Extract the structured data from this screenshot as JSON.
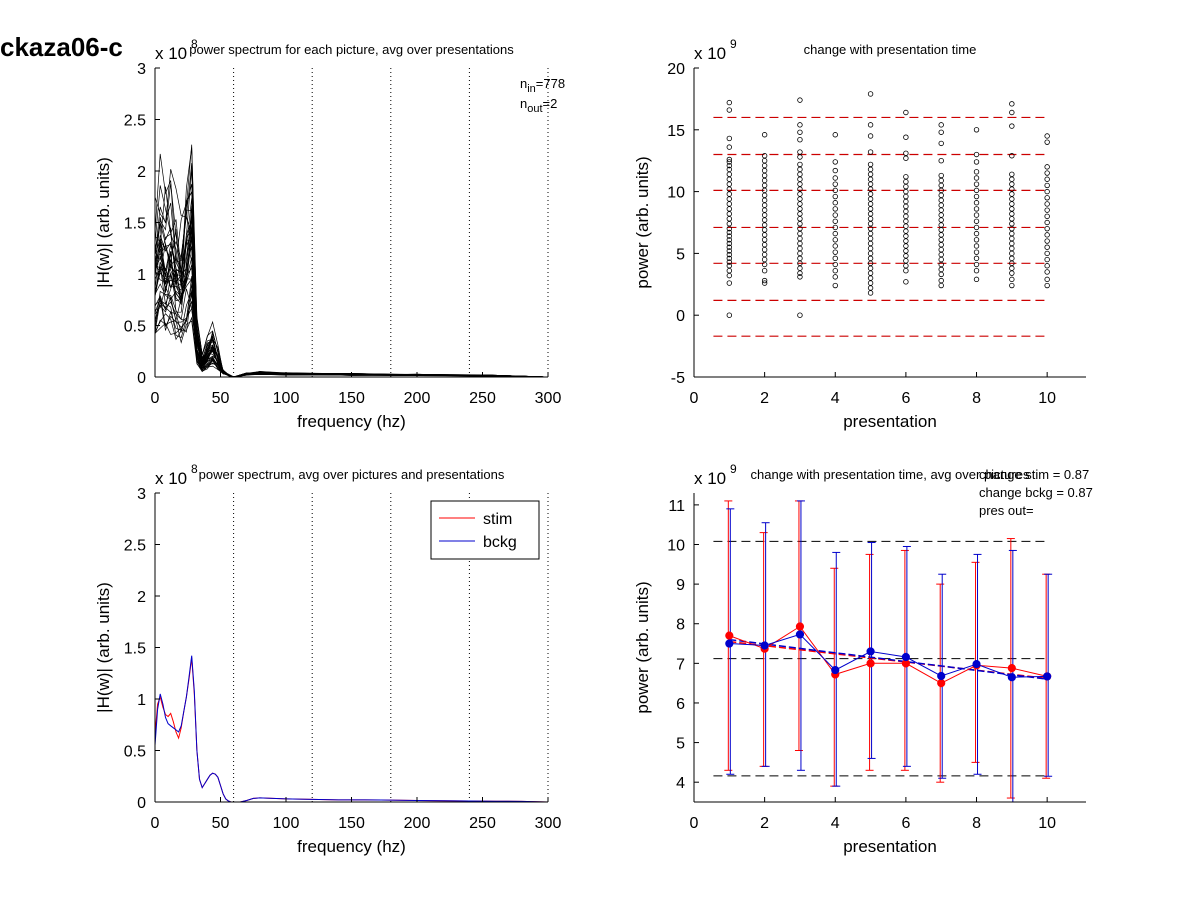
{
  "figure_title": "ckaza06-c",
  "chart_data": [
    {
      "id": "p1",
      "type": "line",
      "title": "power spectrum for each picture, avg over presentations",
      "xlabel": "frequency (hz)",
      "ylabel": "|H(w)| (arb. units)",
      "exponent": "x 10",
      "exponent_power": "8",
      "xlim": [
        0,
        300
      ],
      "ylim": [
        0,
        3
      ],
      "xticks": [
        "0",
        "50",
        "100",
        "150",
        "200",
        "250",
        "300"
      ],
      "yticks": [
        "0",
        "0.5",
        "1",
        "1.5",
        "2",
        "2.5",
        "3"
      ],
      "vlines": [
        60,
        120,
        180,
        240,
        300
      ],
      "annotations": [
        {
          "base": "n",
          "sub": "in",
          "value": "=778"
        },
        {
          "base": "n",
          "sub": "out",
          "value": "=2"
        }
      ],
      "base_curve": {
        "x": [
          0,
          4,
          8,
          12,
          16,
          20,
          24,
          28,
          32,
          36,
          40,
          44,
          48,
          52,
          56,
          60,
          70,
          80,
          100,
          150,
          200,
          250,
          300
        ],
        "y": [
          0.9,
          1.05,
          0.95,
          1.0,
          0.85,
          0.8,
          1.05,
          1.3,
          0.3,
          0.12,
          0.2,
          0.25,
          0.15,
          0.05,
          0.02,
          0.0,
          0.03,
          0.04,
          0.03,
          0.025,
          0.02,
          0.015,
          0.0
        ]
      },
      "curve_count": 40
    },
    {
      "id": "p2",
      "type": "scatter",
      "title": "change with presentation time",
      "xlabel": "presentation",
      "ylabel": "power (arb. units)",
      "exponent": "x 10",
      "exponent_power": "9",
      "xlim": [
        0,
        11.1
      ],
      "ylim": [
        -5,
        20
      ],
      "xtick_values": [
        0,
        2,
        4,
        6,
        8,
        10
      ],
      "xticks": [
        "0",
        "2",
        "4",
        "6",
        "8",
        "10"
      ],
      "ytick_values": [
        -5,
        0,
        5,
        10,
        15,
        20
      ],
      "yticks": [
        "-5",
        "0",
        "5",
        "10",
        "15",
        "20"
      ],
      "hlines": [
        16.0,
        13.0,
        10.1,
        7.1,
        4.2,
        1.2,
        -1.7
      ],
      "hline_color": "#cc0000",
      "series": [
        {
          "x": 1,
          "y": [
            17.2,
            16.6,
            14.3,
            13.6,
            12.6,
            12.4,
            12.1,
            11.8,
            11.4,
            11.0,
            10.6,
            10.2,
            9.8,
            9.4,
            9.0,
            8.6,
            8.2,
            7.8,
            7.4,
            7.0,
            6.7,
            6.4,
            6.1,
            5.8,
            5.5,
            5.2,
            4.9,
            4.6,
            4.3,
            4.0,
            3.6,
            3.2,
            2.6,
            0.0
          ]
        },
        {
          "x": 2,
          "y": [
            14.6,
            12.9,
            12.5,
            12.1,
            11.7,
            11.3,
            10.9,
            10.5,
            10.1,
            9.7,
            9.3,
            8.9,
            8.5,
            8.1,
            7.7,
            7.3,
            6.9,
            6.5,
            6.1,
            5.7,
            5.3,
            4.9,
            4.5,
            4.1,
            3.6,
            2.8,
            2.6
          ]
        },
        {
          "x": 3,
          "y": [
            17.4,
            15.4,
            14.8,
            14.2,
            13.2,
            12.8,
            12.2,
            11.8,
            11.4,
            11.0,
            10.6,
            10.2,
            9.8,
            9.4,
            9.0,
            8.6,
            8.2,
            7.8,
            7.4,
            7.0,
            6.6,
            6.2,
            5.8,
            5.4,
            5.0,
            4.6,
            4.2,
            3.8,
            3.4,
            3.1,
            0.0
          ]
        },
        {
          "x": 4,
          "y": [
            14.6,
            12.4,
            11.7,
            11.1,
            10.6,
            10.1,
            9.6,
            9.1,
            8.6,
            8.1,
            7.6,
            7.1,
            6.6,
            6.1,
            5.6,
            5.1,
            4.6,
            4.1,
            3.6,
            3.1,
            2.4
          ]
        },
        {
          "x": 5,
          "y": [
            17.9,
            15.4,
            14.5,
            13.2,
            12.2,
            11.8,
            11.4,
            11.0,
            10.6,
            10.2,
            9.8,
            9.4,
            9.0,
            8.6,
            8.2,
            7.8,
            7.4,
            7.0,
            6.6,
            6.2,
            5.8,
            5.4,
            5.0,
            4.6,
            4.2,
            3.8,
            3.4,
            3.0,
            2.6,
            2.2,
            1.8
          ]
        },
        {
          "x": 6,
          "y": [
            16.4,
            14.4,
            13.1,
            12.7,
            11.2,
            10.8,
            10.4,
            10.0,
            9.6,
            9.2,
            8.8,
            8.4,
            8.0,
            7.6,
            7.2,
            6.8,
            6.4,
            6.0,
            5.6,
            5.2,
            4.8,
            4.4,
            4.0,
            3.6,
            2.7
          ]
        },
        {
          "x": 7,
          "y": [
            15.4,
            14.8,
            13.9,
            12.5,
            11.3,
            10.9,
            10.5,
            10.1,
            9.7,
            9.3,
            8.9,
            8.5,
            8.1,
            7.7,
            7.3,
            6.9,
            6.5,
            6.1,
            5.7,
            5.3,
            4.9,
            4.5,
            4.1,
            3.7,
            3.3,
            2.8,
            2.4
          ]
        },
        {
          "x": 8,
          "y": [
            15.0,
            13.0,
            12.4,
            11.6,
            11.1,
            10.6,
            10.1,
            9.6,
            9.1,
            8.6,
            8.1,
            7.6,
            7.1,
            6.6,
            6.1,
            5.6,
            5.1,
            4.6,
            4.1,
            3.6,
            2.9
          ]
        },
        {
          "x": 9,
          "y": [
            17.1,
            16.4,
            15.3,
            12.9,
            11.4,
            11.0,
            10.6,
            10.2,
            9.8,
            9.4,
            9.0,
            8.6,
            8.2,
            7.8,
            7.4,
            7.0,
            6.6,
            6.2,
            5.8,
            5.4,
            5.0,
            4.6,
            4.2,
            3.8,
            3.4,
            2.9,
            2.4
          ]
        },
        {
          "x": 10,
          "y": [
            14.5,
            14.0,
            12.0,
            11.5,
            11.0,
            10.5,
            10.0,
            9.5,
            9.0,
            8.5,
            8.0,
            7.5,
            7.0,
            6.5,
            6.0,
            5.5,
            5.0,
            4.5,
            4.0,
            3.5,
            2.9,
            2.4
          ]
        }
      ]
    },
    {
      "id": "p3",
      "type": "line",
      "title": "power spectrum, avg over pictures and presentations",
      "xlabel": "frequency (hz)",
      "ylabel": "|H(w)| (arb. units)",
      "exponent": "x 10",
      "exponent_power": "8",
      "xlim": [
        0,
        300
      ],
      "ylim": [
        0,
        3
      ],
      "xticks": [
        "0",
        "50",
        "100",
        "150",
        "200",
        "250",
        "300"
      ],
      "yticks": [
        "0",
        "0.5",
        "1",
        "1.5",
        "2",
        "2.5",
        "3"
      ],
      "vlines": [
        60,
        120,
        180,
        240,
        300
      ],
      "legend": [
        "stim",
        "bckg"
      ],
      "legend_position": "top-right",
      "series": [
        {
          "name": "stim",
          "color": "#ff0000",
          "x": [
            0,
            2,
            4,
            6,
            8,
            10,
            12,
            14,
            16,
            18,
            20,
            22,
            24,
            26,
            28,
            30,
            32,
            34,
            36,
            38,
            40,
            42,
            44,
            46,
            48,
            50,
            52,
            54,
            56,
            58,
            60,
            65,
            70,
            75,
            80,
            90,
            100,
            120,
            140,
            160,
            180,
            200,
            220,
            240,
            260,
            280,
            300
          ],
          "y": [
            0.65,
            0.95,
            1.02,
            0.92,
            0.85,
            0.83,
            0.86,
            0.78,
            0.68,
            0.62,
            0.72,
            0.88,
            1.02,
            1.2,
            1.4,
            1.05,
            0.5,
            0.22,
            0.14,
            0.18,
            0.22,
            0.26,
            0.28,
            0.27,
            0.24,
            0.16,
            0.08,
            0.03,
            0.01,
            0.0,
            0.0,
            0.0,
            0.015,
            0.035,
            0.04,
            0.035,
            0.03,
            0.025,
            0.02,
            0.02,
            0.018,
            0.015,
            0.012,
            0.01,
            0.008,
            0.006,
            0.0
          ]
        },
        {
          "name": "bckg",
          "color": "#0000cc",
          "x": [
            0,
            2,
            4,
            6,
            8,
            10,
            12,
            14,
            16,
            18,
            20,
            22,
            24,
            26,
            28,
            30,
            32,
            34,
            36,
            38,
            40,
            42,
            44,
            46,
            48,
            50,
            52,
            54,
            56,
            58,
            60,
            65,
            70,
            75,
            80,
            90,
            100,
            120,
            140,
            160,
            180,
            200,
            220,
            240,
            260,
            280,
            300
          ],
          "y": [
            0.55,
            0.9,
            1.05,
            0.95,
            0.82,
            0.76,
            0.74,
            0.72,
            0.7,
            0.68,
            0.74,
            0.88,
            1.02,
            1.22,
            1.42,
            1.08,
            0.5,
            0.22,
            0.14,
            0.18,
            0.22,
            0.26,
            0.28,
            0.27,
            0.24,
            0.16,
            0.08,
            0.03,
            0.01,
            0.0,
            0.0,
            0.0,
            0.015,
            0.035,
            0.04,
            0.035,
            0.03,
            0.025,
            0.02,
            0.02,
            0.018,
            0.015,
            0.012,
            0.01,
            0.008,
            0.006,
            0.0
          ]
        }
      ]
    },
    {
      "id": "p4",
      "type": "line",
      "title": "change with presentation time, avg over pictures",
      "xlabel": "presentation",
      "ylabel": "power (arb. units)",
      "exponent": "x 10",
      "exponent_power": "9",
      "xlim": [
        0,
        11.1
      ],
      "ylim": [
        3.5,
        11.3
      ],
      "xtick_values": [
        0,
        2,
        4,
        6,
        8,
        10
      ],
      "xticks": [
        "0",
        "2",
        "4",
        "6",
        "8",
        "10"
      ],
      "ytick_values": [
        4,
        5,
        6,
        7,
        8,
        9,
        10,
        11
      ],
      "yticks": [
        "4",
        "5",
        "6",
        "7",
        "8",
        "9",
        "10",
        "11"
      ],
      "hlines": [
        10.08,
        7.12,
        4.16
      ],
      "hline_color": "#000000",
      "annotations": [
        "change stim = 0.87",
        "change bckg = 0.87",
        "pres out="
      ],
      "series": [
        {
          "name": "stim",
          "color": "#ff0000",
          "x": [
            1,
            2,
            3,
            4,
            5,
            6,
            7,
            8,
            9,
            10
          ],
          "y": [
            7.7,
            7.37,
            7.93,
            6.72,
            7.0,
            7.0,
            6.5,
            6.95,
            6.88,
            6.67
          ],
          "err_low": [
            4.3,
            4.4,
            4.8,
            3.9,
            4.3,
            4.3,
            4.0,
            4.5,
            3.6,
            4.1
          ],
          "err_high": [
            11.1,
            10.3,
            11.1,
            9.4,
            9.75,
            9.85,
            9.0,
            9.55,
            10.15,
            9.25
          ]
        },
        {
          "name": "bckg",
          "color": "#0000cc",
          "x": [
            1,
            2,
            3,
            4,
            5,
            6,
            7,
            8,
            9,
            10
          ],
          "y": [
            7.5,
            7.45,
            7.73,
            6.83,
            7.3,
            7.16,
            6.68,
            6.98,
            6.65,
            6.67
          ],
          "err_low": [
            4.2,
            4.4,
            4.3,
            3.9,
            4.6,
            4.4,
            4.1,
            4.2,
            3.5,
            4.15
          ],
          "err_high": [
            10.9,
            10.55,
            11.1,
            9.8,
            10.05,
            9.95,
            9.25,
            9.75,
            9.85,
            9.25
          ]
        }
      ],
      "trend_lines": [
        {
          "color": "#ff0000",
          "x": [
            1,
            10
          ],
          "y": [
            7.55,
            6.62
          ]
        },
        {
          "color": "#0000cc",
          "x": [
            1,
            10
          ],
          "y": [
            7.6,
            6.6
          ]
        }
      ]
    }
  ]
}
